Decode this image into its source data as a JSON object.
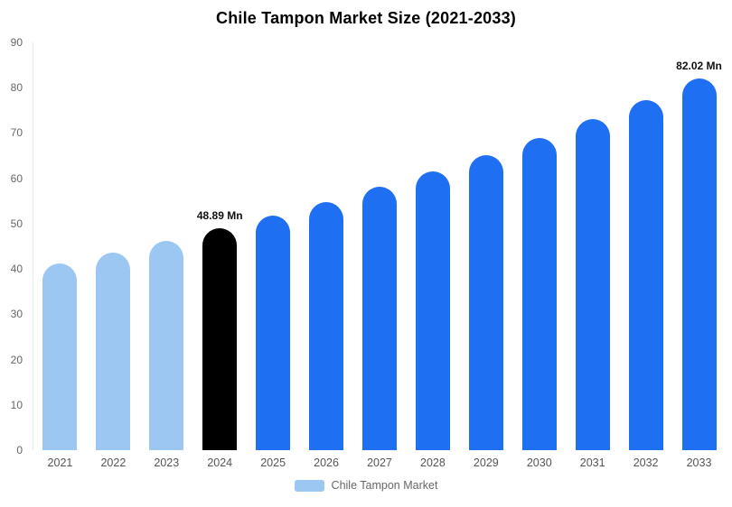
{
  "title": "Chile Tampon Market Size (2021-2033)",
  "legend": {
    "label": "Chile Tampon Market",
    "swatch_color": "#9CC7F3"
  },
  "colors": {
    "light": "#9CC7F3",
    "black": "#000000",
    "blue": "#1E6FF2",
    "axis_text": "#666666",
    "title_text": "#000000"
  },
  "chart_data": {
    "type": "bar",
    "title": "Chile Tampon Market Size (2021-2033)",
    "xlabel": "",
    "ylabel": "",
    "ylim": [
      0,
      90
    ],
    "yticks": [
      0,
      10,
      20,
      30,
      40,
      50,
      60,
      70,
      80,
      90
    ],
    "grid": false,
    "legend_position": "bottom",
    "categories": [
      "2021",
      "2022",
      "2023",
      "2024",
      "2025",
      "2026",
      "2027",
      "2028",
      "2029",
      "2030",
      "2031",
      "2032",
      "2033"
    ],
    "series": [
      {
        "name": "Chile Tampon Market",
        "values": [
          41.23,
          43.61,
          46.17,
          48.89,
          51.77,
          54.82,
          58.05,
          61.47,
          65.09,
          68.92,
          72.98,
          77.28,
          82.02
        ]
      }
    ],
    "bar_colors": [
      "light",
      "light",
      "light",
      "black",
      "blue",
      "blue",
      "blue",
      "blue",
      "blue",
      "blue",
      "blue",
      "blue",
      "blue"
    ],
    "data_labels": {
      "2024": "48.89 Mn",
      "2033": "82.02 Mn"
    },
    "value_unit": "Mn"
  }
}
